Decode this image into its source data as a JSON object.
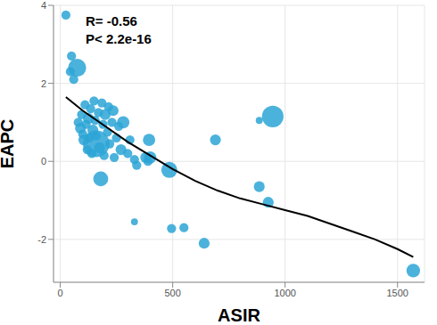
{
  "chart_data": {
    "type": "scatter",
    "x_label": "ASIR",
    "y_label": "EAPC",
    "annotations": [
      "R= -0.56",
      "P< 2.2e-16"
    ],
    "xlim": [
      -30,
      1620
    ],
    "xticks": [
      0,
      500,
      1000,
      1500
    ],
    "ylim": [
      -3.1,
      4
    ],
    "yticks": [
      -2,
      0,
      2,
      4
    ],
    "grid": true,
    "series": [
      {
        "type": "scatter",
        "color": "#2ba4d6",
        "marker": "circle",
        "x": [
          25,
          45,
          50,
          60,
          75,
          80,
          90,
          95,
          100,
          105,
          110,
          115,
          120,
          125,
          130,
          135,
          140,
          145,
          150,
          155,
          160,
          160,
          170,
          175,
          180,
          185,
          190,
          195,
          200,
          210,
          215,
          220,
          230,
          235,
          240,
          250,
          260,
          270,
          280,
          300,
          310,
          330,
          330,
          340,
          380,
          390,
          395,
          400,
          485,
          495,
          550,
          640,
          690,
          885,
          885,
          925,
          945,
          1570
        ],
        "values": [
          3.75,
          2.3,
          2.7,
          2.1,
          2.4,
          1.0,
          0.85,
          1.2,
          0.7,
          0.55,
          1.45,
          0.95,
          0.3,
          1.1,
          0.6,
          1.35,
          0.2,
          0.8,
          1.55,
          1.05,
          0.65,
          0.45,
          1.25,
          0.35,
          -0.45,
          1.5,
          0.95,
          0.15,
          1.2,
          0.75,
          1.4,
          0.45,
          1.0,
          1.3,
          0.1,
          0.6,
          0.9,
          0.3,
          1.0,
          0.2,
          0.55,
          0.05,
          -1.55,
          -0.1,
          0.1,
          0.0,
          0.55,
          0.1,
          -0.22,
          -1.72,
          -1.7,
          -2.1,
          0.55,
          1.05,
          -0.65,
          -1.05,
          1.15,
          -2.8
        ],
        "sizes": [
          2,
          2,
          2,
          2,
          9,
          2,
          3,
          2,
          2,
          3,
          2,
          2,
          2,
          3,
          2,
          2,
          2,
          3,
          2,
          2,
          2,
          20,
          2,
          3,
          6,
          2,
          2,
          2,
          3,
          2,
          2,
          2,
          2,
          3,
          2,
          2,
          2,
          3,
          4,
          2,
          2,
          2,
          1,
          2,
          3,
          2,
          4,
          4,
          7,
          2,
          2,
          3,
          3,
          1,
          3,
          3,
          13,
          5
        ]
      },
      {
        "type": "line",
        "color": "#000000",
        "line_style": "solid",
        "x": [
          25,
          100,
          200,
          300,
          400,
          500,
          600,
          700,
          800,
          900,
          1000,
          1100,
          1200,
          1300,
          1400,
          1500,
          1570
        ],
        "values": [
          1.65,
          1.3,
          0.9,
          0.5,
          0.15,
          -0.2,
          -0.5,
          -0.75,
          -0.95,
          -1.1,
          -1.25,
          -1.4,
          -1.6,
          -1.8,
          -2.0,
          -2.25,
          -2.45
        ]
      }
    ]
  }
}
